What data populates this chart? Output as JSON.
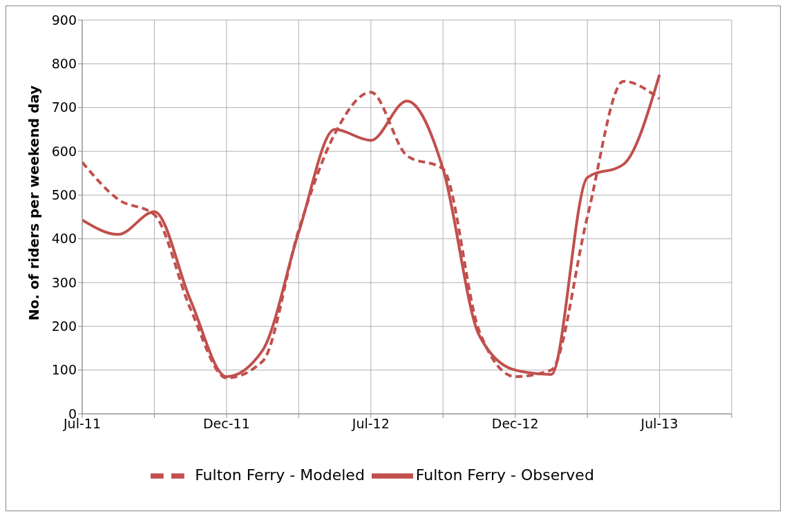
{
  "chart_data": {
    "type": "line",
    "ylabel": "No. of riders per weekend day",
    "categories": [
      "Jul-11",
      null,
      null,
      null,
      "Dec-11",
      null,
      null,
      null,
      "Jul-12",
      null,
      null,
      null,
      "Dec-12",
      null,
      null,
      null,
      "Jul-13",
      null,
      null
    ],
    "series": [
      {
        "name": "Fulton Ferry - Observed",
        "color": "#c0504d",
        "line_style": "solid",
        "values": [
          443,
          410,
          462,
          260,
          85,
          145,
          415,
          650,
          625,
          715,
          560,
          180,
          100,
          90,
          540,
          570,
          775,
          null,
          null
        ]
      },
      {
        "name": "Fulton Ferry - Modeled",
        "color": "#c0504d",
        "line_style": "dashed",
        "values": [
          575,
          490,
          455,
          240,
          82,
          120,
          420,
          640,
          735,
          590,
          560,
          190,
          85,
          100,
          450,
          760,
          720,
          null,
          null
        ]
      }
    ],
    "ylim": [
      0,
      900
    ],
    "yticks": [
      0,
      100,
      200,
      300,
      400,
      500,
      600,
      700,
      800,
      900
    ],
    "grid": true,
    "legend": "bottom",
    "marker": "none"
  }
}
